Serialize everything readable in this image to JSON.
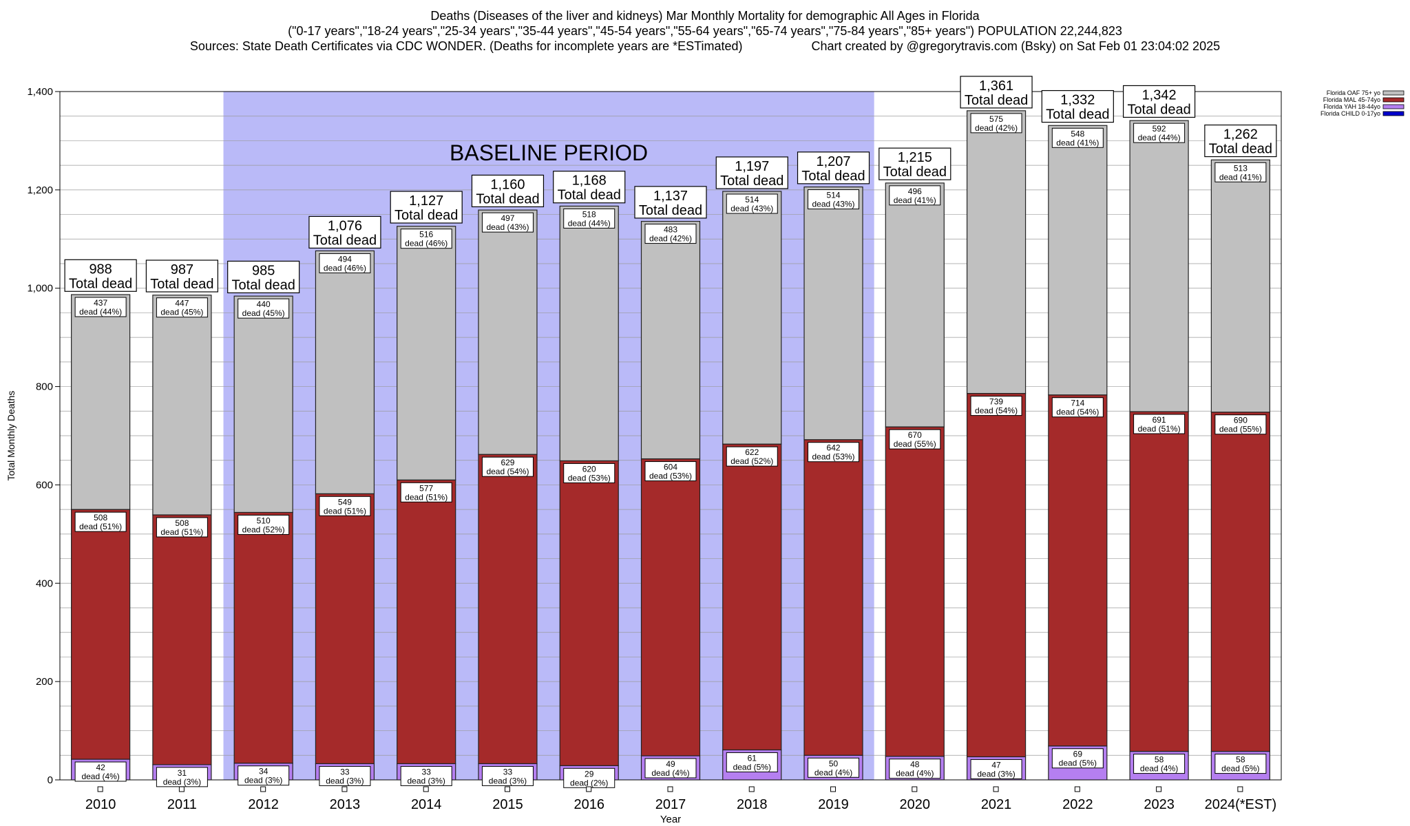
{
  "header": {
    "title": "Deaths (Diseases of the liver and kidneys) Mar Monthly Mortality for demographic All Ages in Florida",
    "subtitle": "(\"0-17 years\",\"18-24 years\",\"25-34 years\",\"35-44 years\",\"45-54 years\",\"55-64 years\",\"65-74 years\",\"75-84 years\",\"85+ years\") POPULATION 22,244,823",
    "sources": "Sources: State Death Certificates via CDC WONDER. (Deaths for incomplete years are *ESTimated)",
    "credit": "Chart created by @gregorytravis.com (Bsky) on Sat Feb 01 23:04:02 2025"
  },
  "chart_data": {
    "type": "bar",
    "stacked": true,
    "xlabel": "Year",
    "ylabel": "Total Monthly Deaths",
    "ylim": [
      0,
      1400
    ],
    "yticks": [
      0,
      200,
      400,
      600,
      800,
      1000,
      1200,
      1400
    ],
    "ytick_labels": [
      "0",
      "200",
      "400",
      "600",
      "800",
      "1,000",
      "1,200",
      "1,400"
    ],
    "grid": true,
    "legend_position": "top-right",
    "baseline_label": "BASELINE PERIOD",
    "baseline_range": [
      "2012",
      "2019"
    ],
    "total_word": "Total dead",
    "dead_word": "dead",
    "categories": [
      "2010",
      "2011",
      "2012",
      "2013",
      "2014",
      "2015",
      "2016",
      "2017",
      "2018",
      "2019",
      "2020",
      "2021",
      "2022",
      "2023",
      "2024(*EST)"
    ],
    "totals": [
      988,
      987,
      985,
      1076,
      1127,
      1160,
      1168,
      1137,
      1197,
      1207,
      1215,
      1361,
      1332,
      1342,
      1262
    ],
    "total_labels": [
      "988",
      "987",
      "985",
      "1,076",
      "1,127",
      "1,160",
      "1,168",
      "1,137",
      "1,197",
      "1,207",
      "1,215",
      "1,361",
      "1,332",
      "1,342",
      "1,262"
    ],
    "series": [
      {
        "name": "Florida CHILD 0-17yo",
        "color": "#0000cc",
        "values": [
          0,
          0,
          0,
          0,
          0,
          0,
          0,
          0,
          0,
          0,
          0,
          0,
          0,
          0,
          0
        ],
        "pcts": [],
        "show_labels": false
      },
      {
        "name": "Florida YAH 18-44yo",
        "color": "#b57ff0",
        "values": [
          42,
          31,
          34,
          33,
          33,
          33,
          29,
          49,
          61,
          50,
          48,
          47,
          69,
          58,
          58
        ],
        "pcts": [
          "4%",
          "3%",
          "3%",
          "3%",
          "3%",
          "3%",
          "2%",
          "4%",
          "5%",
          "4%",
          "4%",
          "3%",
          "5%",
          "4%",
          "5%"
        ],
        "show_labels": true
      },
      {
        "name": "Florida MAL 45-74yo",
        "color": "#a52a2a",
        "values": [
          508,
          508,
          510,
          549,
          577,
          629,
          620,
          604,
          622,
          642,
          670,
          739,
          714,
          691,
          690
        ],
        "pcts": [
          "51%",
          "51%",
          "52%",
          "51%",
          "51%",
          "54%",
          "53%",
          "53%",
          "52%",
          "53%",
          "55%",
          "54%",
          "54%",
          "51%",
          "55%"
        ],
        "show_labels": true
      },
      {
        "name": "Florida OAF 75+ yo",
        "color": "#c0c0c0",
        "values": [
          437,
          447,
          440,
          494,
          516,
          497,
          518,
          483,
          514,
          514,
          496,
          575,
          548,
          592,
          513
        ],
        "pcts": [
          "44%",
          "45%",
          "45%",
          "46%",
          "46%",
          "43%",
          "44%",
          "42%",
          "43%",
          "43%",
          "41%",
          "42%",
          "41%",
          "44%",
          "41%"
        ],
        "show_labels": true
      }
    ],
    "legend_order": [
      "Florida OAF 75+ yo",
      "Florida MAL 45-74yo",
      "Florida YAH 18-44yo",
      "Florida CHILD 0-17yo"
    ]
  }
}
